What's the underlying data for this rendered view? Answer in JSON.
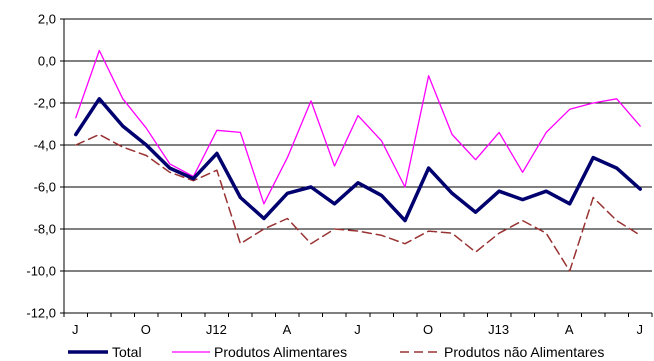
{
  "chart_data": {
    "type": "line",
    "title": "",
    "xlabel": "",
    "ylabel": "",
    "ylim": [
      -12,
      2
    ],
    "yticks": [
      2,
      0,
      -2,
      -4,
      -6,
      -8,
      -10,
      -12
    ],
    "ytick_labels": [
      "2,0",
      "0,0",
      "-2,0",
      "-4,0",
      "-6,0",
      "-8,0",
      "-10,0",
      "-12,0"
    ],
    "grid": true,
    "legend_position": "bottom",
    "x_tick_labels": [
      {
        "index": 0,
        "label": "J"
      },
      {
        "index": 3,
        "label": "O"
      },
      {
        "index": 6,
        "label": "J12"
      },
      {
        "index": 9,
        "label": "A"
      },
      {
        "index": 12,
        "label": "J"
      },
      {
        "index": 15,
        "label": "O"
      },
      {
        "index": 18,
        "label": "J13"
      },
      {
        "index": 21,
        "label": "A"
      },
      {
        "index": 24,
        "label": "J"
      }
    ],
    "series": [
      {
        "name": "Total",
        "color": "#00006e",
        "style": "solid-thick",
        "values": [
          -3.5,
          -1.8,
          -3.1,
          -4.0,
          -5.1,
          -5.6,
          -4.4,
          -6.5,
          -7.5,
          -6.3,
          -6.0,
          -6.8,
          -5.8,
          -6.4,
          -7.6,
          -5.1,
          -6.3,
          -7.2,
          -6.2,
          -6.6,
          -6.2,
          -6.8,
          -4.6,
          -5.1,
          -6.1
        ]
      },
      {
        "name": "Produtos Alimentares",
        "color": "#ff00ff",
        "style": "solid-thin",
        "values": [
          -2.7,
          0.5,
          -1.8,
          -3.2,
          -4.9,
          -5.5,
          -3.3,
          -3.4,
          -6.8,
          -4.6,
          -1.9,
          -5.0,
          -2.6,
          -3.8,
          -6.0,
          -0.7,
          -3.5,
          -4.7,
          -3.4,
          -5.3,
          -3.4,
          -2.3,
          -2.0,
          -1.8,
          -3.1
        ]
      },
      {
        "name": "Produtos não Alimentares",
        "color": "#993333",
        "style": "dashed",
        "values": [
          -4.0,
          -3.5,
          -4.1,
          -4.5,
          -5.3,
          -5.7,
          -5.2,
          -8.7,
          -8.0,
          -7.5,
          -8.7,
          -8.0,
          -8.1,
          -8.3,
          -8.7,
          -8.1,
          -8.2,
          -9.1,
          -8.2,
          -7.6,
          -8.2,
          -10.0,
          -6.5,
          -7.6,
          -8.3
        ]
      }
    ]
  }
}
